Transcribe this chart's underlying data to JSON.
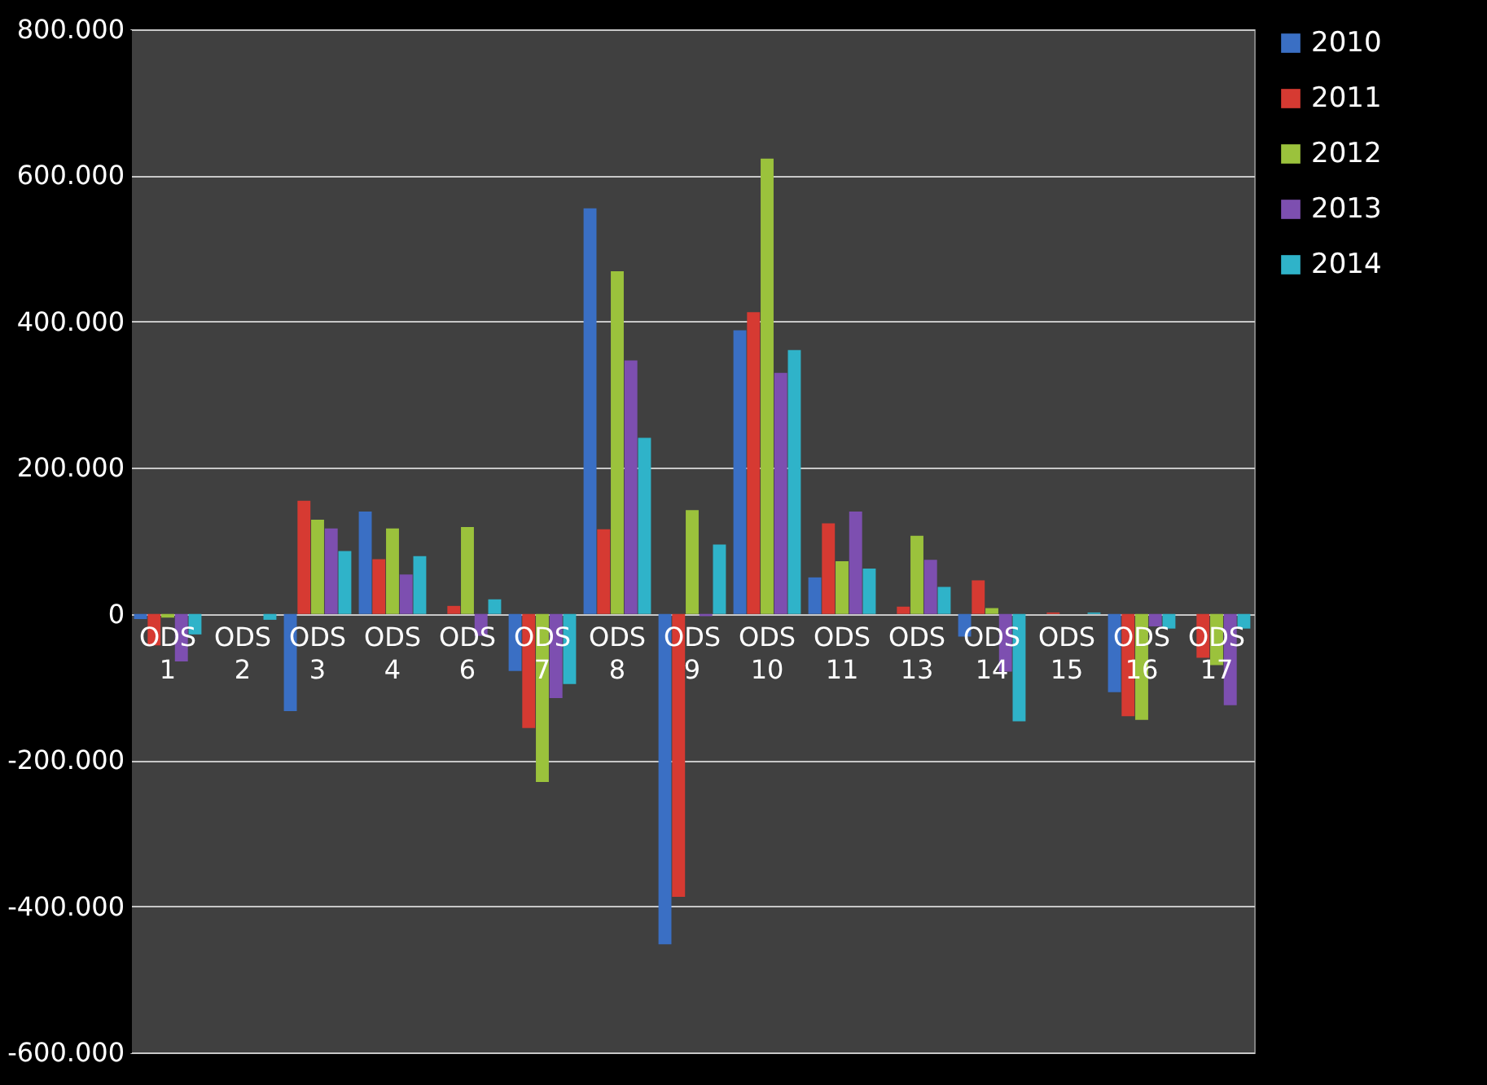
{
  "chart_data": {
    "type": "bar",
    "categories": [
      "ODS 1",
      "ODS 2",
      "ODS 3",
      "ODS 4",
      "ODS 6",
      "ODS 7",
      "ODS 8",
      "ODS 9",
      "ODS 10",
      "ODS 11",
      "ODS 13",
      "ODS 14",
      "ODS 15",
      "ODS 16",
      "ODS 17"
    ],
    "series": [
      {
        "name": "2010",
        "color": "#3a6fc4",
        "values": [
          -7000,
          0,
          -133000,
          140000,
          0,
          -78000,
          555000,
          -452000,
          388000,
          50000,
          0,
          -31000,
          0,
          -107000,
          0
        ]
      },
      {
        "name": "2011",
        "color": "#d63a32",
        "values": [
          -43000,
          0,
          155000,
          75000,
          11000,
          -156000,
          116000,
          -387000,
          413000,
          124000,
          10000,
          46000,
          2000,
          -140000,
          -60000
        ]
      },
      {
        "name": "2012",
        "color": "#9bc23c",
        "values": [
          -5000,
          0,
          129000,
          117000,
          119000,
          -230000,
          469000,
          142000,
          623000,
          72000,
          107000,
          8000,
          0,
          -145000,
          -70000
        ]
      },
      {
        "name": "2013",
        "color": "#7d4fb0",
        "values": [
          -65000,
          0,
          117000,
          54000,
          -30000,
          -115000,
          347000,
          -3000,
          330000,
          140000,
          74000,
          -79000,
          0,
          -17000,
          -125000
        ]
      },
      {
        "name": "2014",
        "color": "#2fb3c9",
        "values": [
          -28000,
          -8000,
          86000,
          79000,
          20000,
          -96000,
          241000,
          95000,
          361000,
          62000,
          37000,
          -147000,
          2000,
          -20000,
          -20000
        ]
      }
    ],
    "ylim": [
      -600000,
      800000
    ],
    "yticks": [
      {
        "value": -600000,
        "label": "-600.000"
      },
      {
        "value": -400000,
        "label": "-400.000"
      },
      {
        "value": -200000,
        "label": "-200.000"
      },
      0,
      {
        "value": 200000,
        "label": "200.000"
      },
      {
        "value": 400000,
        "label": "400.000"
      },
      {
        "value": 600000,
        "label": "600.000"
      },
      {
        "value": 800000,
        "label": "800.000"
      }
    ],
    "grid": "y",
    "legend": "right"
  }
}
